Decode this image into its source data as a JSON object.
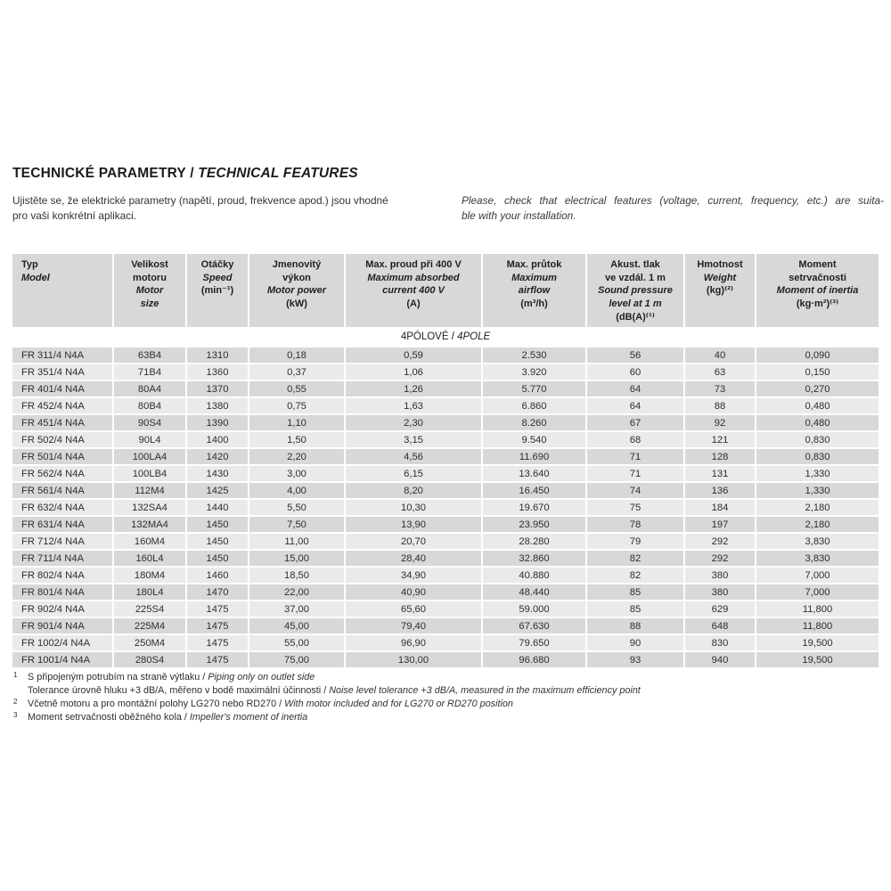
{
  "title": {
    "cs": "TECHNICKÉ PARAMETRY / ",
    "en": "TECHNICAL FEATURES"
  },
  "intro": {
    "czech_lines": [
      "Ujistěte se, že elektrické parametry (napětí, proud, frekvence apod.) jsou vhodné",
      "pro vaši konkrétní aplikaci."
    ],
    "english_lines": [
      "Please, check that electrical features (voltage, current, frequency, etc.) are suita-",
      "ble with your installation."
    ]
  },
  "table": {
    "columns": [
      {
        "cs": [
          "Typ"
        ],
        "en": [
          "Model"
        ],
        "unit": ""
      },
      {
        "cs": [
          "Velikost",
          "motoru"
        ],
        "en": [
          "Motor",
          "size"
        ],
        "unit": ""
      },
      {
        "cs": [
          "Otáčky"
        ],
        "en": [
          "Speed"
        ],
        "unit": "(min⁻¹)"
      },
      {
        "cs": [
          "Jmenovitý",
          "výkon"
        ],
        "en": [
          "Motor power"
        ],
        "unit": "(kW)"
      },
      {
        "cs": [
          "Max. proud při 400 V"
        ],
        "en": [
          "Maximum absorbed",
          "current 400 V"
        ],
        "unit": "(A)"
      },
      {
        "cs": [
          "Max. průtok"
        ],
        "en": [
          "Maximum",
          "airflow"
        ],
        "unit": "(m³/h)"
      },
      {
        "cs": [
          "Akust. tlak",
          "ve vzdál. 1 m"
        ],
        "en": [
          "Sound pressure",
          "level at 1 m"
        ],
        "unit": "(dB(A)⁽¹⁾"
      },
      {
        "cs": [
          "Hmotnost"
        ],
        "en": [
          "Weight"
        ],
        "unit": "(kg)⁽²⁾"
      },
      {
        "cs": [
          "Moment",
          "setrvačnosti"
        ],
        "en": [
          "Moment of inertia"
        ],
        "unit": "(kg·m²)⁽³⁾"
      }
    ],
    "section": {
      "cs": "4PÓLOVÉ / ",
      "en": "4POLE"
    },
    "rows": [
      [
        "FR 311/4 N4A",
        "63B4",
        "1310",
        "0,18",
        "0,59",
        "2.530",
        "56",
        "40",
        "0,090"
      ],
      [
        "FR 351/4 N4A",
        "71B4",
        "1360",
        "0,37",
        "1,06",
        "3.920",
        "60",
        "63",
        "0,150"
      ],
      [
        "FR 401/4 N4A",
        "80A4",
        "1370",
        "0,55",
        "1,26",
        "5.770",
        "64",
        "73",
        "0,270"
      ],
      [
        "FR 452/4 N4A",
        "80B4",
        "1380",
        "0,75",
        "1,63",
        "6.860",
        "64",
        "88",
        "0,480"
      ],
      [
        "FR 451/4 N4A",
        "90S4",
        "1390",
        "1,10",
        "2,30",
        "8.260",
        "67",
        "92",
        "0,480"
      ],
      [
        "FR 502/4 N4A",
        "90L4",
        "1400",
        "1,50",
        "3,15",
        "9.540",
        "68",
        "121",
        "0,830"
      ],
      [
        "FR 501/4 N4A",
        "100LA4",
        "1420",
        "2,20",
        "4,56",
        "11.690",
        "71",
        "128",
        "0,830"
      ],
      [
        "FR 562/4 N4A",
        "100LB4",
        "1430",
        "3,00",
        "6,15",
        "13.640",
        "71",
        "131",
        "1,330"
      ],
      [
        "FR 561/4 N4A",
        "112M4",
        "1425",
        "4,00",
        "8,20",
        "16.450",
        "74",
        "136",
        "1,330"
      ],
      [
        "FR 632/4 N4A",
        "132SA4",
        "1440",
        "5,50",
        "10,30",
        "19.670",
        "75",
        "184",
        "2,180"
      ],
      [
        "FR 631/4 N4A",
        "132MA4",
        "1450",
        "7,50",
        "13,90",
        "23.950",
        "78",
        "197",
        "2,180"
      ],
      [
        "FR 712/4 N4A",
        "160M4",
        "1450",
        "11,00",
        "20,70",
        "28.280",
        "79",
        "292",
        "3,830"
      ],
      [
        "FR 711/4 N4A",
        "160L4",
        "1450",
        "15,00",
        "28,40",
        "32.860",
        "82",
        "292",
        "3,830"
      ],
      [
        "FR 802/4 N4A",
        "180M4",
        "1460",
        "18,50",
        "34,90",
        "40.880",
        "82",
        "380",
        "7,000"
      ],
      [
        "FR 801/4 N4A",
        "180L4",
        "1470",
        "22,00",
        "40,90",
        "48.440",
        "85",
        "380",
        "7,000"
      ],
      [
        "FR 902/4 N4A",
        "225S4",
        "1475",
        "37,00",
        "65,60",
        "59.000",
        "85",
        "629",
        "11,800"
      ],
      [
        "FR 901/4 N4A",
        "225M4",
        "1475",
        "45,00",
        "79,40",
        "67.630",
        "88",
        "648",
        "11,800"
      ],
      [
        "FR 1002/4 N4A",
        "250M4",
        "1475",
        "55,00",
        "96,90",
        "79.650",
        "90",
        "830",
        "19,500"
      ],
      [
        "FR 1001/4 N4A",
        "280S4",
        "1475",
        "75,00",
        "130,00",
        "96.680",
        "93",
        "940",
        "19,500"
      ]
    ]
  },
  "footnotes": [
    {
      "marker": "1",
      "cs": "S připojeným potrubím na straně výtlaku / ",
      "en": "Piping only on outlet side"
    },
    {
      "marker": "",
      "cs": "Tolerance úrovně hluku +3 dB/A, měřeno v bodě maximální účinnosti / ",
      "en": "Noise level tolerance +3 dB/A, measured in the maximum efficiency point"
    },
    {
      "marker": "2",
      "cs": "Včetně motoru a pro montážní polohy LG270 nebo RD270 / ",
      "en": "With motor included and for LG270 or RD270 position"
    },
    {
      "marker": "3",
      "cs": "Moment setrvačnosti oběžného kola / ",
      "en": "Impeller's moment of inertia"
    }
  ]
}
